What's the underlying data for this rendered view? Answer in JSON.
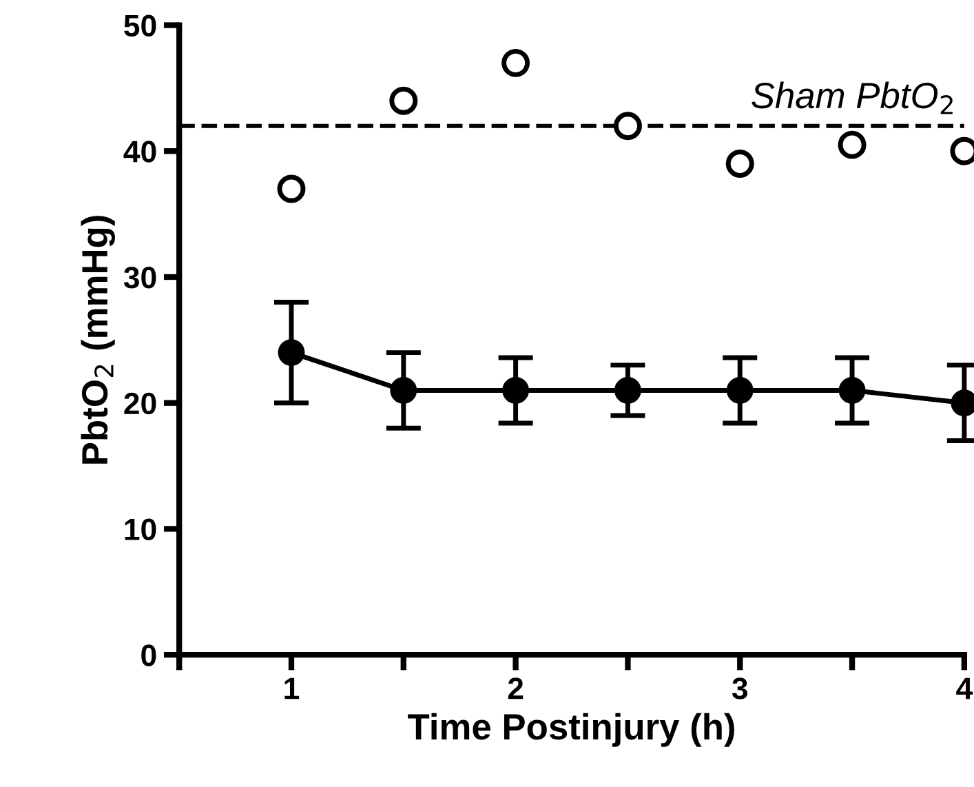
{
  "chart_data": {
    "type": "line",
    "xlabel": "Time Postinjury (h)",
    "ylabel": "PbtO$_{2}$ (mmHg)",
    "x": [
      1,
      1.5,
      2,
      2.5,
      3,
      3.5,
      4
    ],
    "series": [
      {
        "color": "#000000",
        "marker": "circle",
        "line_style": "solid",
        "values": [
          24,
          21,
          21,
          21,
          21,
          21,
          20
        ],
        "errors": [
          4,
          3,
          2.6,
          2,
          2.6,
          2.6,
          3
        ]
      },
      {
        "type": "scatter",
        "color": "#000000",
        "marker": "circle",
        "values": [
          37,
          44,
          47,
          42,
          39,
          40.5,
          40
        ]
      }
    ],
    "xlim": [
      0.5,
      4
    ],
    "xticks": [
      {
        "value": 0.5,
        "label": null
      },
      1,
      {
        "value": 1.5,
        "label": null
      },
      2,
      {
        "value": 2.5,
        "label": null
      },
      3,
      {
        "value": 3.5,
        "label": null
      },
      4
    ],
    "ylim": [
      0,
      50
    ],
    "yticks": [
      0,
      10,
      20,
      30,
      40,
      50
    ],
    "ref_lines": [
      {
        "axis": "y",
        "value": 42,
        "label": "Sham PbtO$_{2}$",
        "color": "#000000",
        "line_style": "dashed"
      }
    ],
    "grid": false,
    "legend": false
  }
}
